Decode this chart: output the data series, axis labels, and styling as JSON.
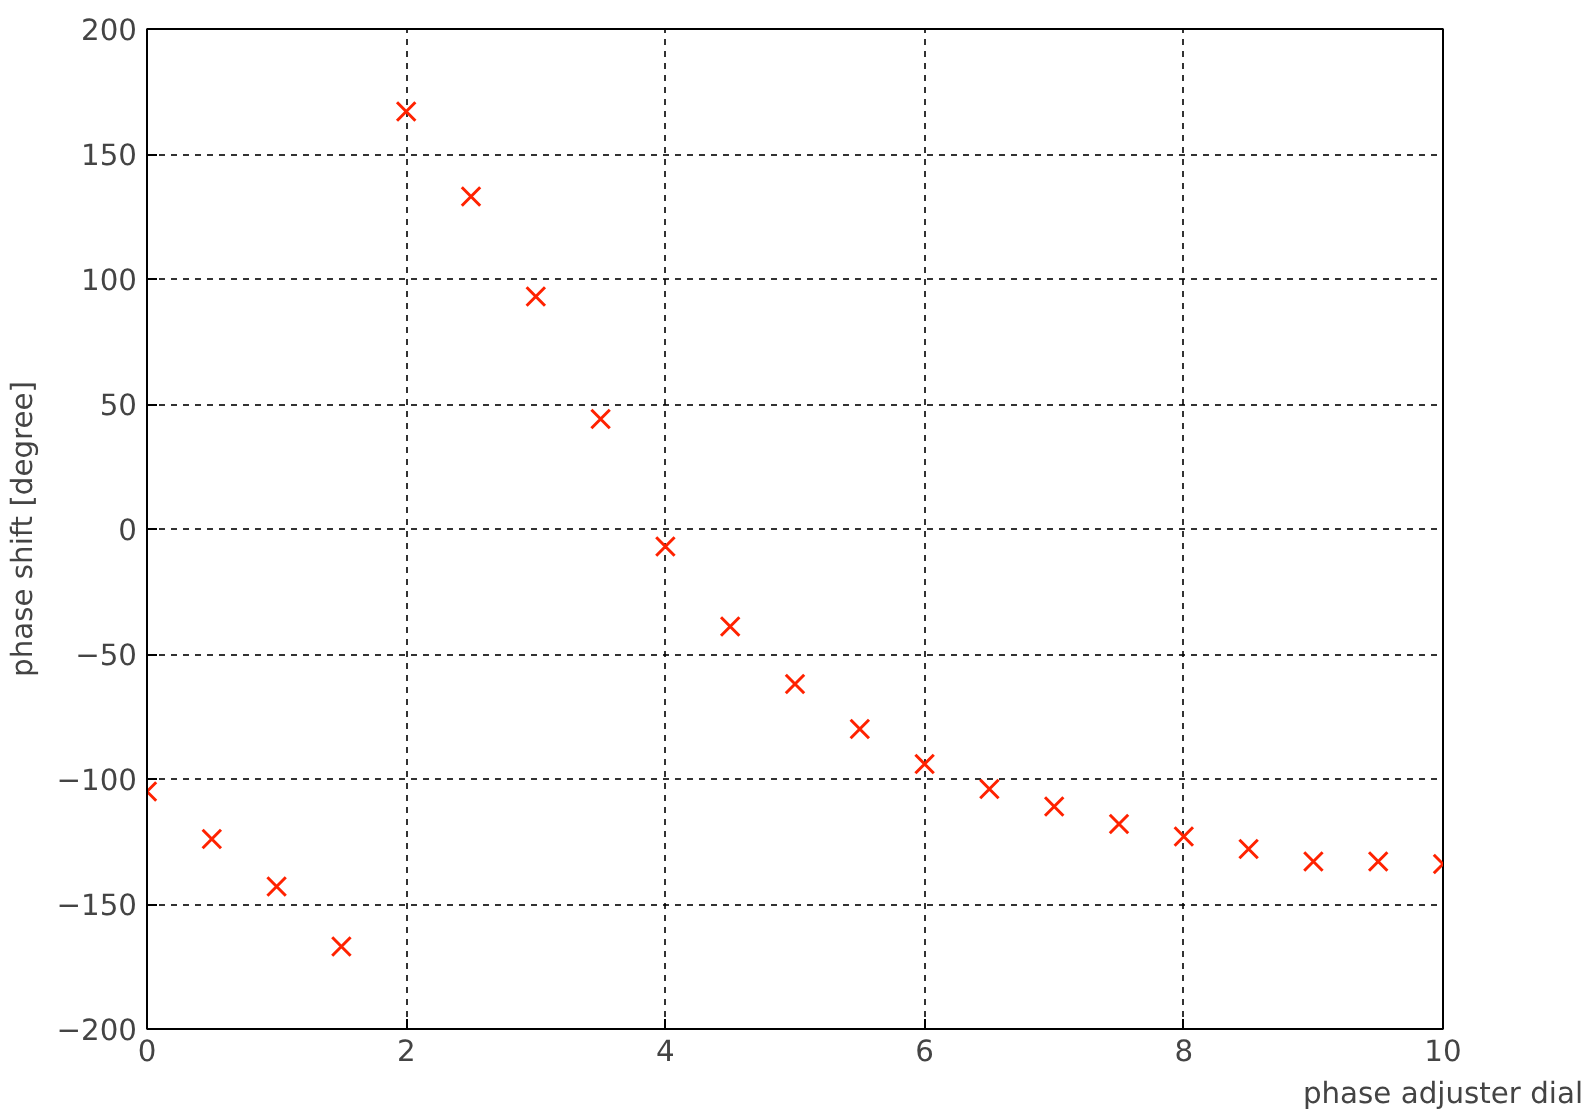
{
  "chart_data": {
    "type": "scatter",
    "xlabel": "phase adjuster dial",
    "ylabel": "phase shift [degree]",
    "x": [
      0,
      0.5,
      1,
      1.5,
      2,
      2.5,
      3,
      3.5,
      4,
      4.5,
      5,
      5.5,
      6,
      6.5,
      7,
      7.5,
      8,
      8.5,
      9,
      9.5,
      10
    ],
    "series": [
      {
        "color": "#ff2200",
        "values": [
          -105,
          -124,
          -143,
          -167,
          167,
          133,
          93,
          44,
          -7,
          -39,
          -62,
          -80,
          -94,
          -104,
          -111,
          -118,
          -123,
          -128,
          -133,
          -133,
          -134
        ]
      }
    ],
    "xlim": [
      0,
      10
    ],
    "ylim": [
      -200,
      200
    ],
    "xticks": [
      0,
      2,
      4,
      6,
      8,
      10
    ],
    "yticks": [
      -200,
      -150,
      -100,
      -50,
      0,
      50,
      100,
      150,
      200
    ],
    "grid": true,
    "marker": "cross"
  }
}
